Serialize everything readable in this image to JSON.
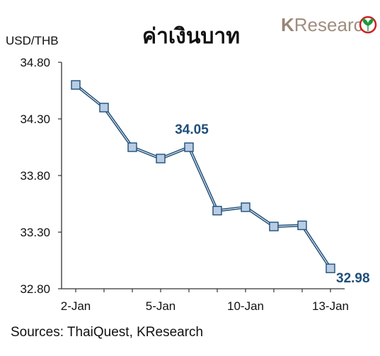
{
  "title": "ค่าเงินบาท",
  "brand": {
    "k": "K",
    "rest": "Research",
    "color": "#9a8574",
    "leaf_color": "#1a9a3c",
    "ring_color": "#cc2222"
  },
  "unit_label": "USD/THB",
  "source": "Sources: ThaiQuest, KResearch",
  "chart_data": {
    "type": "line",
    "title": "ค่าเงินบาท",
    "ylabel": "USD/THB",
    "xlabel": "",
    "ylim": [
      32.8,
      34.8
    ],
    "yticks": [
      "34.80",
      "34.30",
      "33.80",
      "33.30",
      "32.80"
    ],
    "yticks_values": [
      34.8,
      34.3,
      33.8,
      33.3,
      32.8
    ],
    "xtick_labels": [
      "2-Jan",
      "5-Jan",
      "10-Jan",
      "13-Jan"
    ],
    "xtick_index": [
      0,
      3,
      6,
      9
    ],
    "series": [
      {
        "values": [
          34.6,
          34.4,
          34.05,
          33.95,
          34.05,
          33.49,
          33.52,
          33.35,
          33.36,
          32.98
        ],
        "color": "#1f4e79",
        "marker_fill": "#b8cce4"
      }
    ],
    "data_labels": [
      {
        "index": 4,
        "text": "34.05"
      },
      {
        "index": 9,
        "text": "32.98"
      }
    ],
    "grid": false,
    "legend": "none"
  }
}
